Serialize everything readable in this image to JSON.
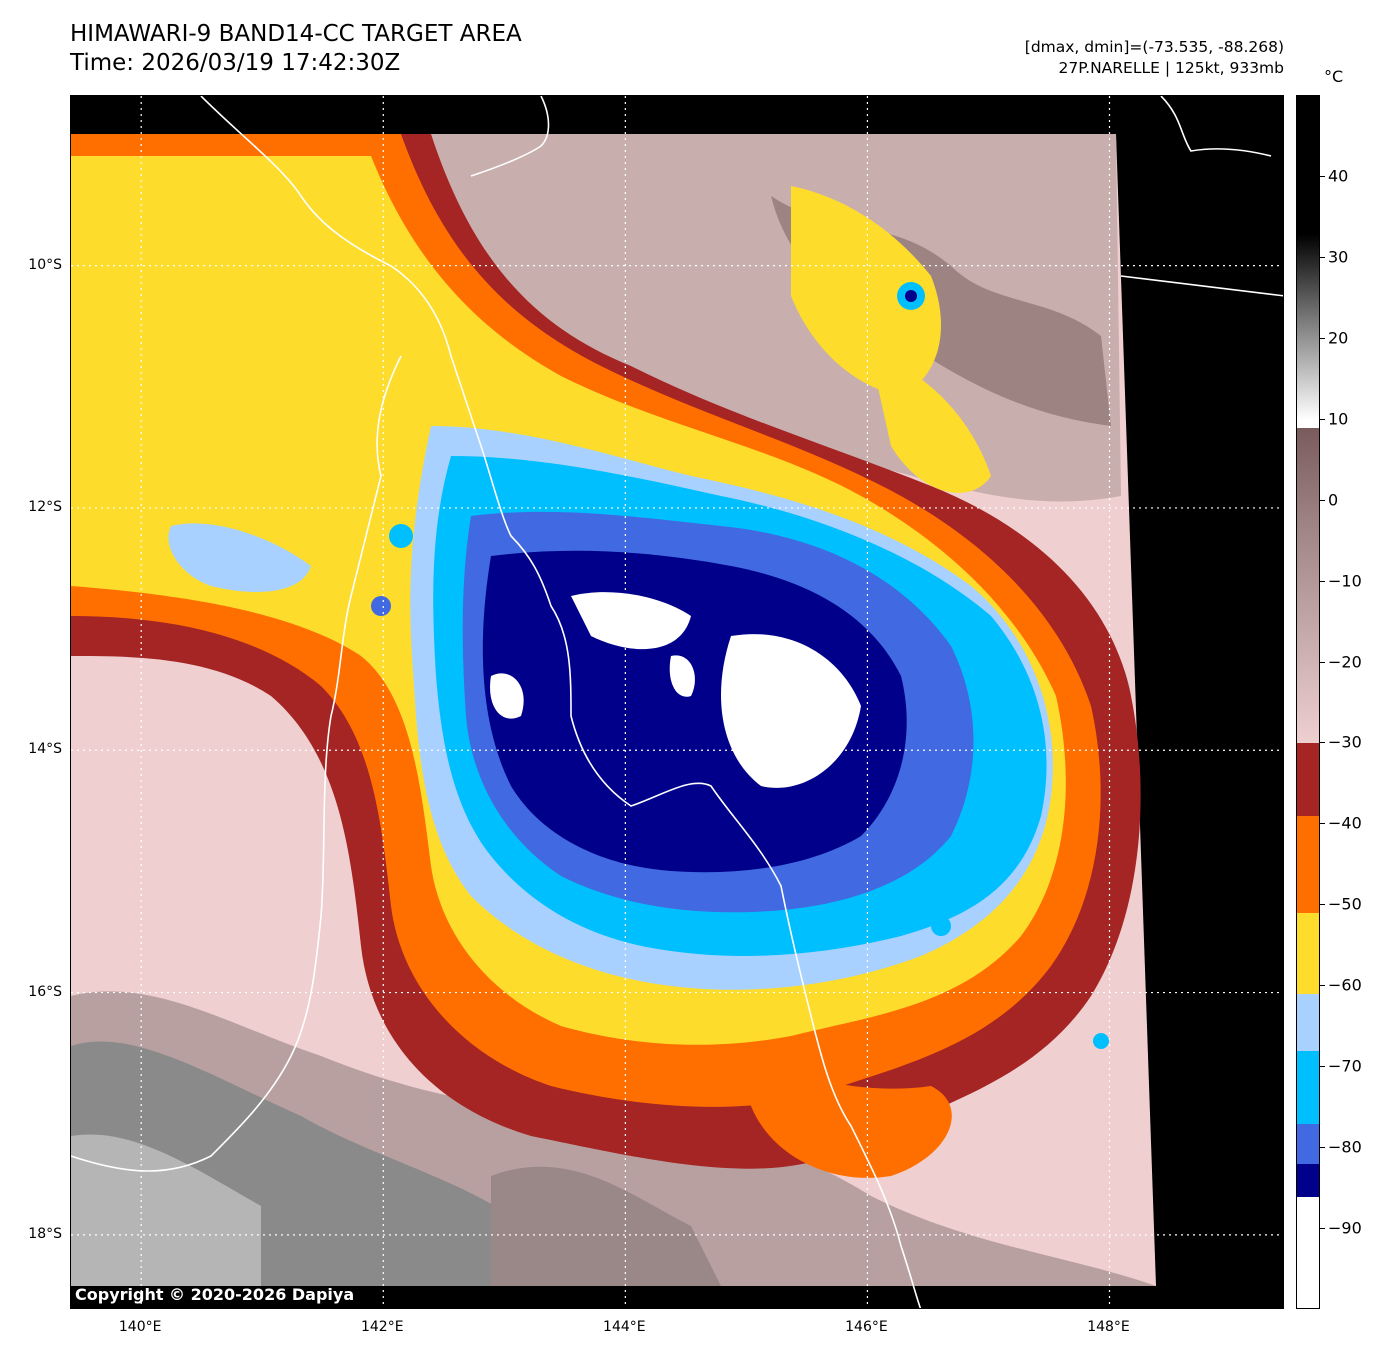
{
  "header": {
    "title": "HIMAWARI-9 BAND14-CC TARGET AREA",
    "time": "Time: 2026/03/19 17:42:30Z",
    "dmax_dmin": "[dmax, dmin]=(-73.535, -88.268)",
    "storm": "27P.NARELLE | 125kt, 933mb"
  },
  "map": {
    "copyright": "Copyright © 2020-2026 Dapiya",
    "lat_labels": [
      "10°S",
      "12°S",
      "14°S",
      "16°S",
      "18°S"
    ],
    "lon_labels": [
      "140°E",
      "142°E",
      "144°E",
      "146°E",
      "148°E"
    ],
    "lat_values": [
      -10,
      -12,
      -14,
      -16,
      -18
    ],
    "lon_values": [
      140,
      142,
      144,
      146,
      148
    ],
    "extent": {
      "lon_min": 139.42,
      "lon_max": 149.45,
      "lat_max": -8.6,
      "lat_min": -18.62
    },
    "colors": {
      "coast": "#ffffff",
      "gridline": "#ffffff",
      "no_data": "#000000"
    }
  },
  "colorbar": {
    "unit": "°C",
    "tick_labels": [
      "40",
      "30",
      "20",
      "10",
      "0",
      "−10",
      "−20",
      "−30",
      "−40",
      "−50",
      "−60",
      "−70",
      "−80",
      "−90"
    ],
    "tick_values": [
      40,
      30,
      20,
      10,
      0,
      -10,
      -20,
      -30,
      -40,
      -50,
      -60,
      -70,
      -80,
      -90
    ],
    "range": [
      -100,
      50
    ],
    "segments": [
      {
        "from": 30,
        "to": 50,
        "color": "#000000"
      },
      {
        "from": 20,
        "to": 30,
        "color": "#777777"
      },
      {
        "from": 10,
        "to": 20,
        "color": "#e8e8e8"
      },
      {
        "from": 9,
        "to": 10,
        "color": "#ffffff"
      },
      {
        "from": 0,
        "to": 9,
        "color": "#7a5b5b"
      },
      {
        "from": -10,
        "to": 0,
        "color": "#9e8383"
      },
      {
        "from": -20,
        "to": -10,
        "color": "#c5aaaa"
      },
      {
        "from": -30,
        "to": -20,
        "color": "#efcfcf"
      },
      {
        "from": -39,
        "to": -30,
        "color": "#a52424"
      },
      {
        "from": -51,
        "to": -39,
        "color": "#ff6f00"
      },
      {
        "from": -61,
        "to": -51,
        "color": "#fddc2c"
      },
      {
        "from": -68,
        "to": -61,
        "color": "#a8d1ff"
      },
      {
        "from": -77,
        "to": -68,
        "color": "#00bfff"
      },
      {
        "from": -82,
        "to": -77,
        "color": "#4169e1"
      },
      {
        "from": -86,
        "to": -82,
        "color": "#00008b"
      },
      {
        "from": -100,
        "to": -86,
        "color": "#ffffff"
      }
    ]
  }
}
